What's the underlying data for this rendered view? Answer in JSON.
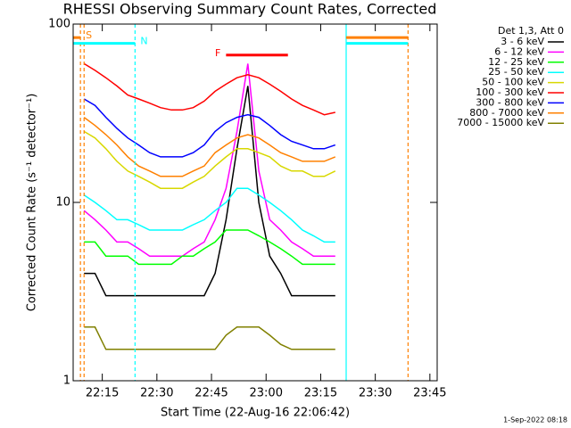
{
  "chart_data": {
    "type": "line",
    "title": "RHESSI Observing Summary Count Rates, Corrected",
    "x_label": "Start Time (22-Aug-16 22:06:42)",
    "y_label": "Corrected Count Rate (s⁻¹ detector⁻¹)",
    "legend_title": "Det 1,3, Att 0",
    "footer": "1-Sep-2022 08:18",
    "log_y": true,
    "xlim": [
      "22:07",
      "23:47"
    ],
    "xticks": [
      "22:15",
      "22:30",
      "22:45",
      "23:00",
      "23:15",
      "23:30",
      "23:45"
    ],
    "ylim": [
      1,
      100
    ],
    "yticks": [
      1,
      10,
      100
    ],
    "x": [
      "22:10",
      "22:13",
      "22:16",
      "22:19",
      "22:22",
      "22:25",
      "22:28",
      "22:31",
      "22:34",
      "22:37",
      "22:40",
      "22:43",
      "22:46",
      "22:49",
      "22:52",
      "22:55",
      "22:58",
      "23:01",
      "23:04",
      "23:07",
      "23:10",
      "23:13",
      "23:16",
      "23:19"
    ],
    "series": [
      {
        "name": "3 - 6 keV",
        "color": "#000000",
        "values": [
          4,
          4,
          3,
          3,
          3,
          3,
          3,
          3,
          3,
          3,
          3,
          3,
          4,
          8,
          20,
          45,
          10,
          5,
          4,
          3,
          3,
          3,
          3,
          3
        ]
      },
      {
        "name": "6 - 12 keV",
        "color": "#ff00ff",
        "values": [
          9,
          8,
          7,
          6,
          6,
          5.5,
          5,
          5,
          5,
          5,
          5.5,
          6,
          8,
          12,
          25,
          60,
          15,
          8,
          7,
          6,
          5.5,
          5,
          5,
          5
        ]
      },
      {
        "name": "12 - 25 keV",
        "color": "#00ff00",
        "values": [
          6,
          6,
          5,
          5,
          5,
          4.5,
          4.5,
          4.5,
          4.5,
          5,
          5,
          5.5,
          6,
          7,
          7,
          7,
          6.5,
          6,
          5.5,
          5,
          4.5,
          4.5,
          4.5,
          4.5
        ]
      },
      {
        "name": "25 - 50 keV",
        "color": "#00ffff",
        "values": [
          11,
          10,
          9,
          8,
          8,
          7.5,
          7,
          7,
          7,
          7,
          7.5,
          8,
          9,
          10,
          12,
          12,
          11,
          10,
          9,
          8,
          7,
          6.5,
          6,
          6
        ]
      },
      {
        "name": "50 - 100 keV",
        "color": "#d8d800",
        "values": [
          25,
          23,
          20,
          17,
          15,
          14,
          13,
          12,
          12,
          12,
          13,
          14,
          16,
          18,
          20,
          20,
          19,
          18,
          16,
          15,
          15,
          14,
          14,
          15
        ]
      },
      {
        "name": "100 - 300 keV",
        "color": "#ff0000",
        "values": [
          60,
          55,
          50,
          45,
          40,
          38,
          36,
          34,
          33,
          33,
          34,
          37,
          42,
          46,
          50,
          52,
          50,
          46,
          42,
          38,
          35,
          33,
          31,
          32
        ]
      },
      {
        "name": "300 - 800 keV",
        "color": "#0000ff",
        "values": [
          38,
          35,
          30,
          26,
          23,
          21,
          19,
          18,
          18,
          18,
          19,
          21,
          25,
          28,
          30,
          31,
          30,
          27,
          24,
          22,
          21,
          20,
          20,
          21
        ]
      },
      {
        "name": "800 - 7000 keV",
        "color": "#ff8000",
        "values": [
          30,
          27,
          24,
          21,
          18,
          16,
          15,
          14,
          14,
          14,
          15,
          16,
          19,
          21,
          23,
          24,
          23,
          21,
          19,
          18,
          17,
          17,
          17,
          18
        ]
      },
      {
        "name": "7000 - 15000 keV",
        "color": "#808000",
        "values": [
          2,
          2,
          1.5,
          1.5,
          1.5,
          1.5,
          1.5,
          1.5,
          1.5,
          1.5,
          1.5,
          1.5,
          1.5,
          1.8,
          2,
          2,
          2,
          1.8,
          1.6,
          1.5,
          1.5,
          1.5,
          1.5,
          1.5
        ]
      }
    ],
    "annotations": [
      {
        "label": "S",
        "color": "#ff8000",
        "y": 84,
        "spans": [
          [
            "22:07",
            "22:09"
          ],
          [
            "23:22",
            "23:39"
          ]
        ]
      },
      {
        "label": "N",
        "color": "#00ffff",
        "y": 78,
        "spans": [
          [
            "22:07",
            "22:24"
          ],
          [
            "23:22",
            "23:39"
          ]
        ]
      },
      {
        "label": "F",
        "color": "#ff0000",
        "y": 67,
        "spans": [
          [
            "22:49",
            "23:06"
          ]
        ]
      }
    ],
    "vlines": [
      {
        "time": "22:09",
        "color": "#ff8000",
        "dashed": true
      },
      {
        "time": "22:10",
        "color": "#ff8000",
        "dashed": true
      },
      {
        "time": "22:24",
        "color": "#00ffff",
        "dashed": true
      },
      {
        "time": "23:22",
        "color": "#00ffff",
        "dashed": false
      },
      {
        "time": "23:39",
        "color": "#ff8000",
        "dashed": true
      }
    ]
  }
}
